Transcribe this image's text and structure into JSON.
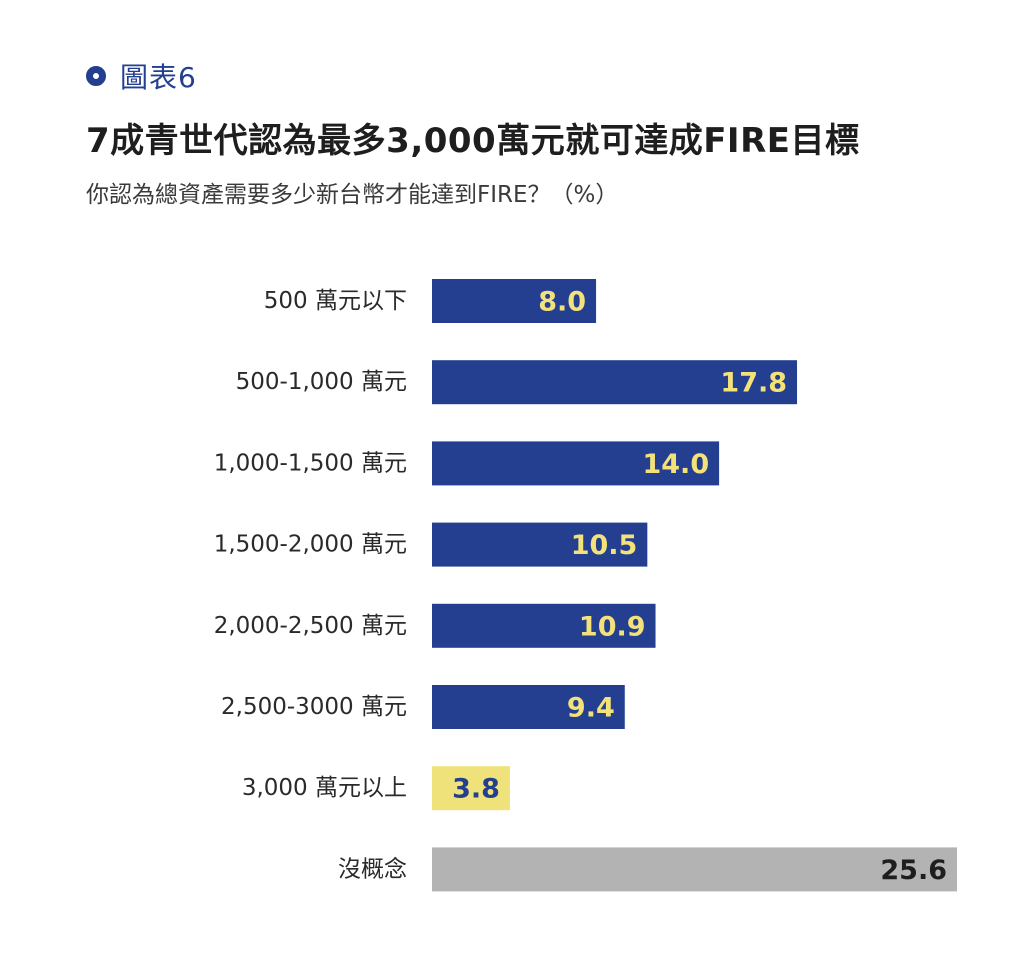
{
  "header": {
    "figure_label": "圖表6",
    "icon": "circle-icon"
  },
  "chart_data": {
    "type": "bar",
    "orientation": "horizontal",
    "title": "7成青世代認為最多3,000萬元就可達成FIRE目標",
    "subtitle": "你認為總資產需要多少新台幣才能達到FIRE？（%）",
    "categories": [
      "500 萬元以下",
      "500-1,000 萬元",
      "1,000-1,500 萬元",
      "1,500-2,000 萬元",
      "2,000-2,500 萬元",
      "2,500-3000 萬元",
      "3,000 萬元以上",
      "沒概念"
    ],
    "values": [
      8.0,
      17.8,
      14.0,
      10.5,
      10.9,
      9.4,
      3.8,
      25.6
    ],
    "value_labels": [
      "8.0",
      "17.8",
      "14.0",
      "10.5",
      "10.9",
      "9.4",
      "3.8",
      "25.6"
    ],
    "bar_colors": [
      "#243f8f",
      "#243f8f",
      "#243f8f",
      "#243f8f",
      "#243f8f",
      "#243f8f",
      "#f0e27a",
      "#b3b3b3"
    ],
    "label_colors": [
      "#f3e27a",
      "#f3e27a",
      "#f3e27a",
      "#f3e27a",
      "#f3e27a",
      "#f3e27a",
      "#243f8f",
      "#1e1e1e"
    ],
    "xlim": [
      0,
      25.6
    ],
    "grid": false,
    "legend": "none"
  },
  "colors": {
    "primary": "#243f8f",
    "highlight": "#f0e27a",
    "neutral": "#b3b3b3",
    "text": "#1e1e1e"
  }
}
